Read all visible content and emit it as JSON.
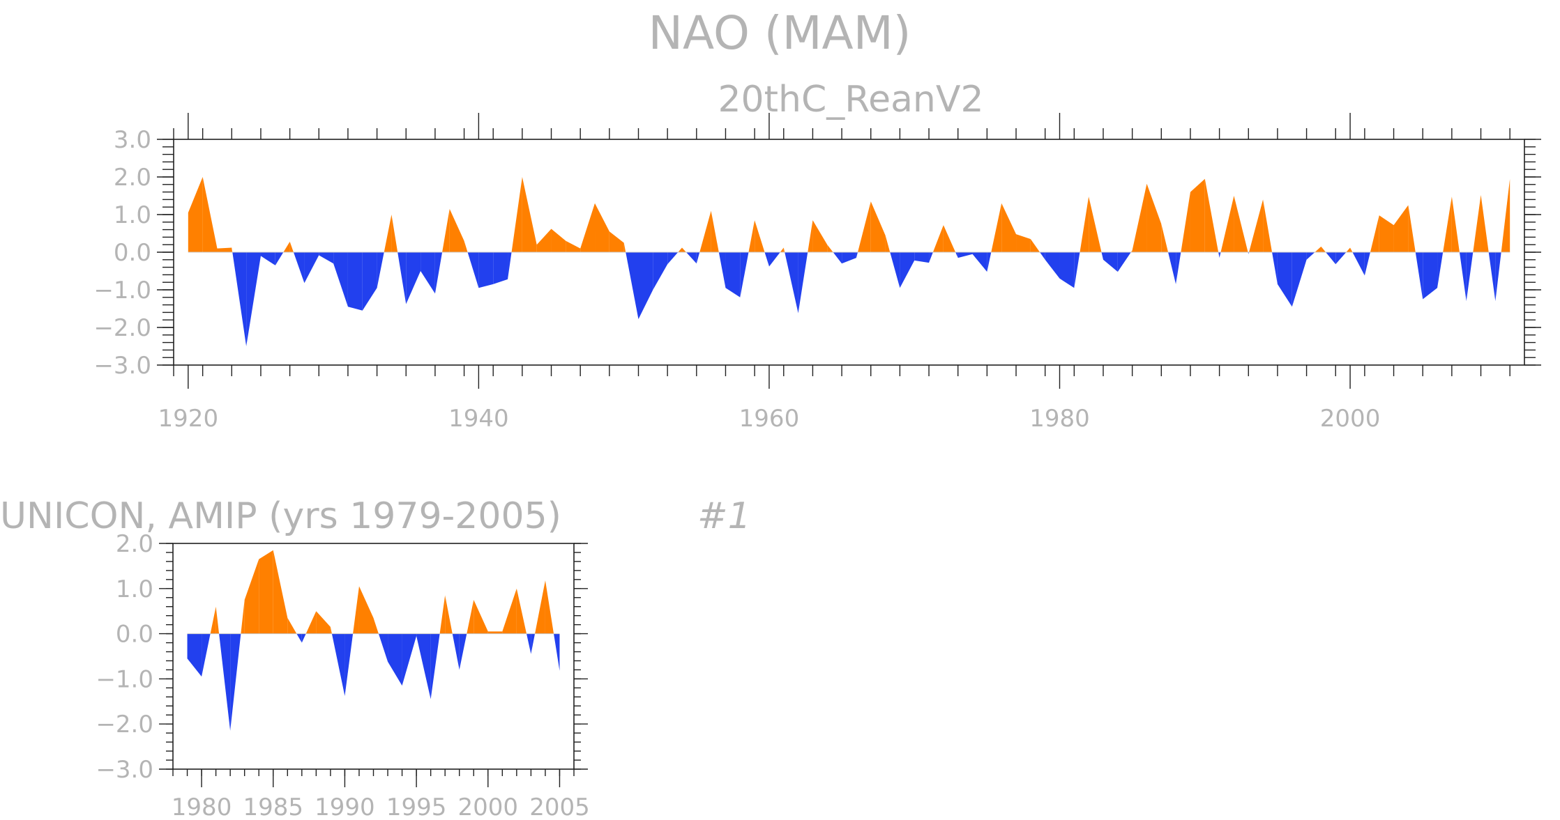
{
  "colors": {
    "positive": "#ff8000",
    "negative": "#2240ee",
    "text": "#b4b4b4",
    "axis": "#202020"
  },
  "main_title": "NAO (MAM)",
  "chart_data": [
    {
      "type": "area",
      "title": "20thC_ReanV2",
      "xlabel": "",
      "ylabel": "",
      "ylim": [
        -3.0,
        3.0
      ],
      "xlim": [
        1919,
        2012
      ],
      "yticks": [
        3.0,
        2.0,
        1.0,
        0.0,
        -1.0,
        -2.0,
        -3.0
      ],
      "ytick_labels": [
        "3.0",
        "2.0",
        "1.0",
        "0.0",
        "−1.0",
        "−2.0",
        "−3.0"
      ],
      "xticks": [
        1920,
        1940,
        1960,
        1980,
        2000
      ],
      "xtick_labels": [
        "1920",
        "1940",
        "1960",
        "1980",
        "2000"
      ],
      "x": [
        1920,
        1921,
        1922,
        1923,
        1924,
        1925,
        1926,
        1927,
        1928,
        1929,
        1930,
        1931,
        1932,
        1933,
        1934,
        1935,
        1936,
        1937,
        1938,
        1939,
        1940,
        1941,
        1942,
        1943,
        1944,
        1945,
        1946,
        1947,
        1948,
        1949,
        1950,
        1951,
        1952,
        1953,
        1954,
        1955,
        1956,
        1957,
        1958,
        1959,
        1960,
        1961,
        1962,
        1963,
        1964,
        1965,
        1966,
        1967,
        1968,
        1969,
        1970,
        1971,
        1972,
        1973,
        1974,
        1975,
        1976,
        1977,
        1978,
        1979,
        1980,
        1981,
        1982,
        1983,
        1984,
        1985,
        1986,
        1987,
        1988,
        1989,
        1990,
        1991,
        1992,
        1993,
        1994,
        1995,
        1996,
        1997,
        1998,
        1999,
        2000,
        2001,
        2002,
        2003,
        2004,
        2005,
        2006,
        2007,
        2008,
        2009,
        2010,
        2011
      ],
      "values": [
        1.05,
        2.0,
        0.1,
        0.12,
        -2.5,
        -0.1,
        -0.35,
        0.28,
        -0.82,
        -0.08,
        -0.3,
        -1.45,
        -1.55,
        -0.95,
        1.0,
        -1.38,
        -0.5,
        -1.1,
        1.15,
        0.3,
        -0.95,
        -0.85,
        -0.72,
        2.0,
        0.2,
        0.62,
        0.3,
        0.1,
        1.3,
        0.55,
        0.25,
        -1.78,
        -1.0,
        -0.32,
        0.12,
        -0.3,
        1.1,
        -0.95,
        -1.2,
        0.85,
        -0.38,
        0.12,
        -1.62,
        0.85,
        0.2,
        -0.3,
        -0.15,
        1.35,
        0.45,
        -0.95,
        -0.22,
        -0.28,
        0.72,
        -0.15,
        -0.05,
        -0.52,
        1.3,
        0.48,
        0.35,
        -0.2,
        -0.7,
        -0.95,
        1.48,
        -0.2,
        -0.52,
        0.05,
        1.82,
        0.75,
        -0.85,
        1.6,
        1.95,
        -0.15,
        1.5,
        -0.05,
        1.4,
        -0.85,
        -1.45,
        -0.2,
        0.15,
        -0.32,
        0.12,
        -0.62,
        0.98,
        0.72,
        1.25,
        -1.25,
        -0.95,
        1.48,
        -1.3,
        1.52,
        -1.3,
        1.95
      ]
    },
    {
      "type": "area",
      "title": "UNICON, AMIP (yrs 1979-2005)",
      "run_label": "#1",
      "xlabel": "",
      "ylabel": "",
      "ylim": [
        -3.0,
        2.0
      ],
      "xlim": [
        1978,
        2006
      ],
      "yticks": [
        2.0,
        1.0,
        0.0,
        -1.0,
        -2.0,
        -3.0
      ],
      "ytick_labels": [
        "2.0",
        "1.0",
        "0.0",
        "−1.0",
        "−2.0",
        "−3.0"
      ],
      "xticks": [
        1980,
        1985,
        1990,
        1995,
        2000,
        2005
      ],
      "xtick_labels": [
        "1980",
        "1985",
        "1990",
        "1995",
        "2000",
        "2005"
      ],
      "x": [
        1979,
        1980,
        1981,
        1982,
        1983,
        1984,
        1985,
        1986,
        1987,
        1988,
        1989,
        1990,
        1991,
        1992,
        1993,
        1994,
        1995,
        1996,
        1997,
        1998,
        1999,
        2000,
        2001,
        2002,
        2003,
        2004,
        2005
      ],
      "values": [
        -0.55,
        -0.95,
        0.6,
        -2.15,
        0.75,
        1.65,
        1.85,
        0.35,
        -0.2,
        0.5,
        0.15,
        -1.38,
        1.05,
        0.35,
        -0.62,
        -1.15,
        -0.05,
        -1.45,
        0.85,
        -0.8,
        0.75,
        0.05,
        0.05,
        1.0,
        -0.45,
        1.18,
        -0.82
      ]
    }
  ]
}
